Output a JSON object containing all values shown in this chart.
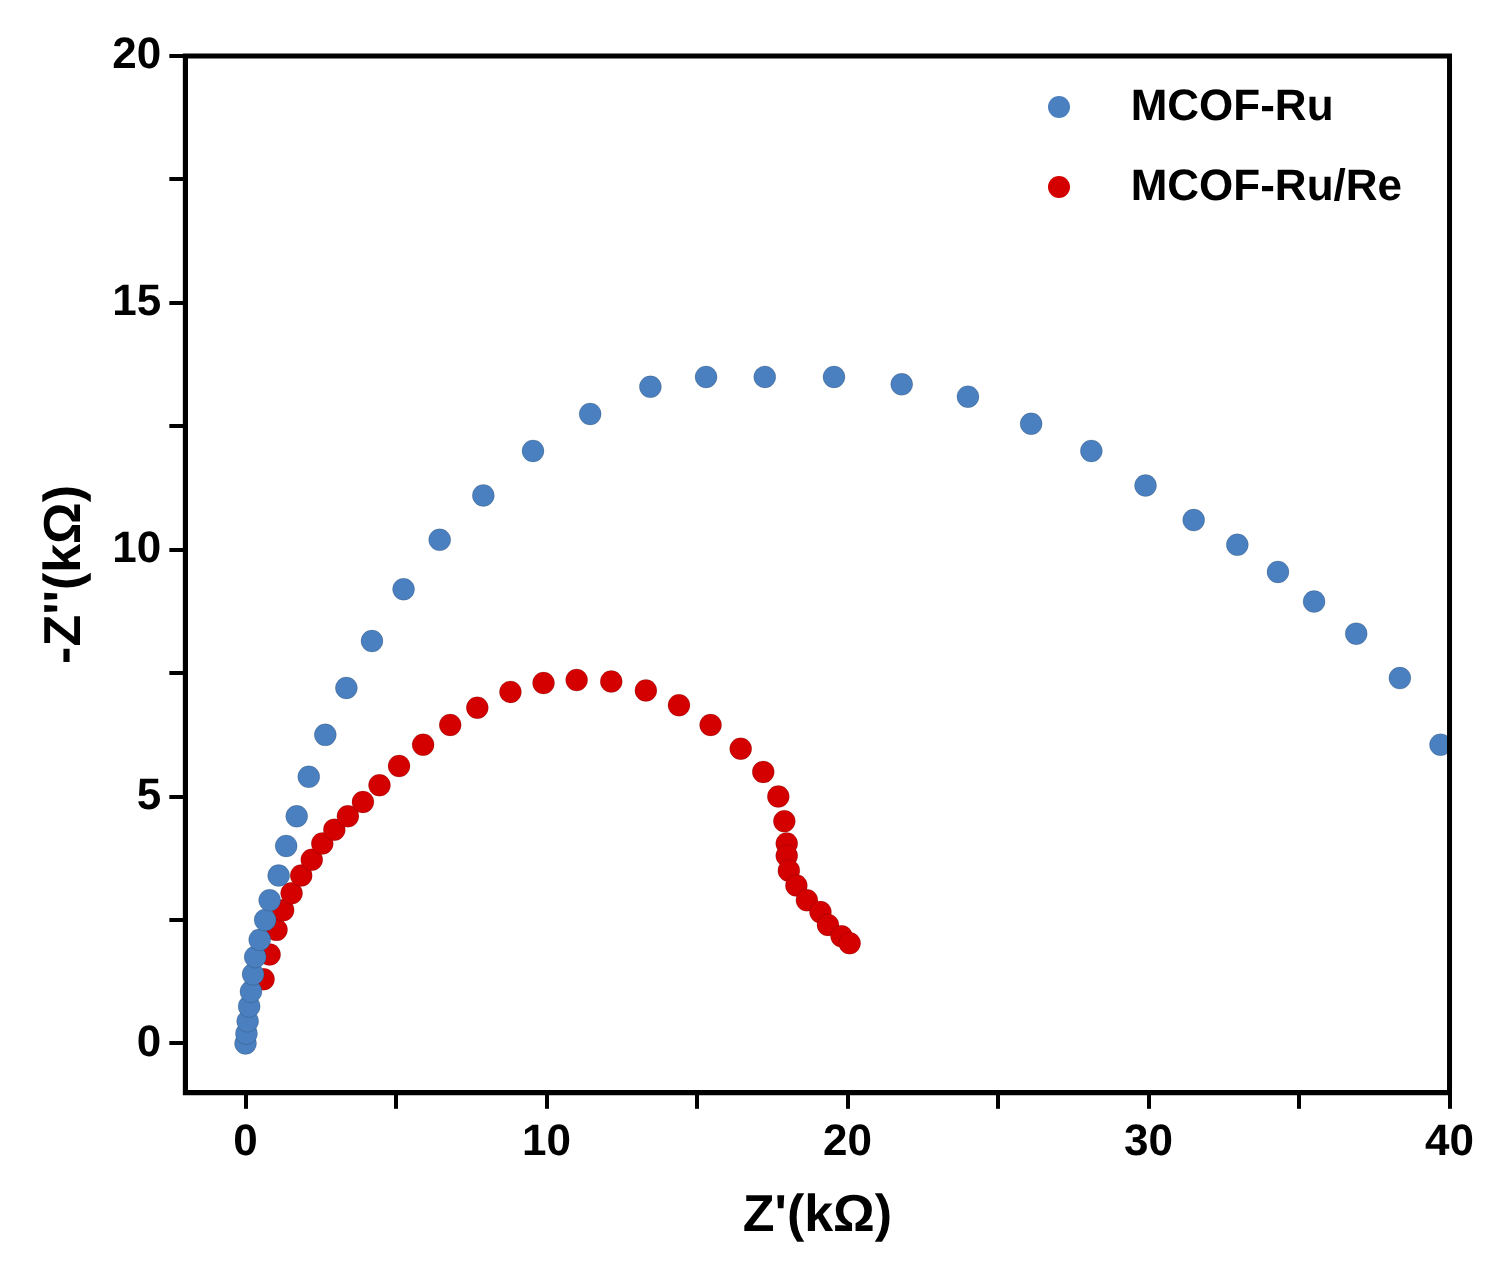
{
  "chart_data": {
    "type": "scatter",
    "xlabel": "Z'(kΩ)",
    "ylabel": "-Z''(kΩ)",
    "xlim": [
      -2,
      40
    ],
    "ylim": [
      -1,
      20
    ],
    "xticks": [
      0,
      {
        "value": 5,
        "label": null
      },
      10,
      {
        "value": 15,
        "label": null
      },
      20,
      {
        "value": 25,
        "label": null
      },
      30,
      {
        "value": 35,
        "label": null
      },
      40
    ],
    "yticks": [
      0,
      {
        "value": 2.5,
        "label": null
      },
      5,
      {
        "value": 7.5,
        "label": null
      },
      10,
      {
        "value": 12.5,
        "label": null
      },
      15,
      {
        "value": 17.5,
        "label": null
      },
      20
    ],
    "legend": "top right",
    "marker": "circle",
    "grid": false,
    "series": [
      {
        "name": "MCOF-Ru",
        "color": "#4a80c0",
        "x": [
          0,
          0.03,
          0.07,
          0.12,
          0.18,
          0.25,
          0.32,
          0.47,
          0.65,
          0.8,
          1.1,
          1.35,
          1.7,
          2.1,
          2.65,
          3.35,
          4.2,
          5.25,
          6.45,
          7.9,
          9.55,
          11.45,
          13.45,
          15.3,
          17.25,
          19.55,
          21.8,
          24.0,
          26.1,
          28.1,
          29.9,
          31.5,
          32.95,
          34.3,
          35.5,
          36.9,
          38.35,
          39.7
        ],
        "values": [
          0,
          0.2,
          0.45,
          0.75,
          1.05,
          1.4,
          1.75,
          2.1,
          2.5,
          2.9,
          3.4,
          4.0,
          4.6,
          5.4,
          6.25,
          7.2,
          8.15,
          9.2,
          10.2,
          11.1,
          12.0,
          12.75,
          13.3,
          13.5,
          13.5,
          13.5,
          13.35,
          13.1,
          12.55,
          12.0,
          11.3,
          10.6,
          10.1,
          9.55,
          8.95,
          8.3,
          7.4,
          6.05
        ]
      },
      {
        "name": "MCOF-Ru/Re",
        "color": "#d40000",
        "x": [
          0.6,
          0.8,
          1.03,
          1.25,
          1.53,
          1.85,
          2.2,
          2.55,
          2.95,
          3.4,
          3.9,
          4.45,
          5.1,
          5.9,
          6.8,
          7.7,
          8.8,
          9.9,
          11.0,
          12.15,
          13.3,
          14.4,
          15.45,
          16.45,
          17.2,
          17.7,
          17.9,
          17.98,
          17.98,
          18.05,
          18.3,
          18.65,
          19.1,
          19.35,
          19.8,
          20.07
        ],
        "values": [
          1.3,
          1.8,
          2.3,
          2.7,
          3.04,
          3.4,
          3.72,
          4.05,
          4.33,
          4.6,
          4.89,
          5.23,
          5.62,
          6.05,
          6.45,
          6.8,
          7.12,
          7.3,
          7.36,
          7.33,
          7.15,
          6.85,
          6.45,
          5.97,
          5.5,
          5.0,
          4.5,
          4.05,
          3.8,
          3.5,
          3.2,
          2.9,
          2.66,
          2.4,
          2.17,
          2.03
        ]
      }
    ]
  }
}
